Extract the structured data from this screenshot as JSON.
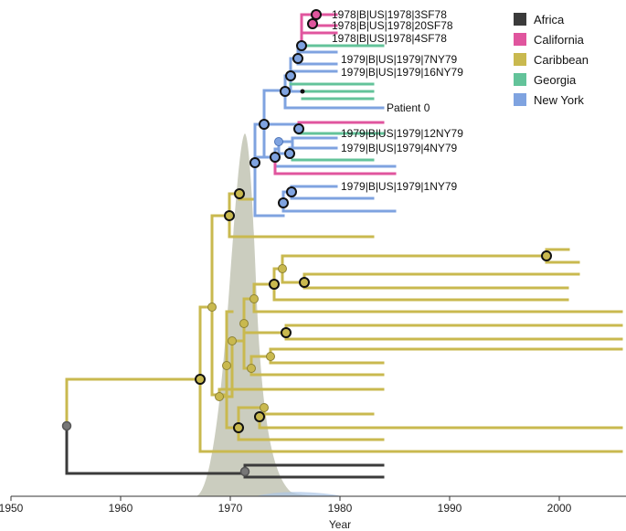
{
  "legend": [
    {
      "label": "Africa",
      "color": "#3b3b3b"
    },
    {
      "label": "California",
      "color": "#e0559e"
    },
    {
      "label": "Caribbean",
      "color": "#c9b94f"
    },
    {
      "label": "Georgia",
      "color": "#63c39a"
    },
    {
      "label": "New York",
      "color": "#7fa3e0"
    }
  ],
  "axis": {
    "xlabel": "Year",
    "ticks": [
      "1950",
      "1960",
      "1970",
      "1980",
      "1990",
      "2000"
    ]
  },
  "tip_labels": [
    "1978|B|US|1978|3SF78",
    "1978|B|US|1978|20SF78",
    "1978|B|US|1978|4SF78",
    "1979|B|US|1979|7NY79",
    "1979|B|US|1979|16NY79",
    "Patient 0",
    "1979|B|US|1979|12NY79",
    "1979|B|US|1979|4NY79",
    "1979|B|US|1979|1NY79"
  ]
}
